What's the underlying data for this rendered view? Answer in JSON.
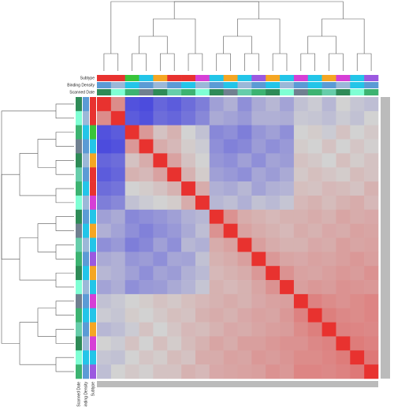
{
  "chart_data": {
    "type": "heatmap",
    "zlim": [
      0,
      1
    ],
    "colorscale": [
      "#2a2ae0",
      "#d2d2d2",
      "#e8322f"
    ],
    "matrix": [
      [
        1,
        0.72,
        0.12,
        0.1,
        0.18,
        0.15,
        0.2,
        0.25,
        0.35,
        0.4,
        0.3,
        0.38,
        0.42,
        0.36,
        0.45,
        0.48,
        0.42,
        0.5,
        0.46,
        0.44
      ],
      [
        0.72,
        1,
        0.15,
        0.12,
        0.2,
        0.18,
        0.22,
        0.28,
        0.38,
        0.36,
        0.33,
        0.4,
        0.4,
        0.39,
        0.47,
        0.46,
        0.44,
        0.48,
        0.45,
        0.5
      ],
      [
        0.12,
        0.15,
        1,
        0.68,
        0.55,
        0.6,
        0.5,
        0.45,
        0.28,
        0.3,
        0.25,
        0.32,
        0.35,
        0.3,
        0.5,
        0.52,
        0.48,
        0.55,
        0.5,
        0.53
      ],
      [
        0.1,
        0.12,
        0.68,
        1,
        0.62,
        0.58,
        0.52,
        0.48,
        0.3,
        0.26,
        0.28,
        0.34,
        0.3,
        0.33,
        0.52,
        0.5,
        0.55,
        0.5,
        0.54,
        0.51
      ],
      [
        0.18,
        0.2,
        0.55,
        0.62,
        1,
        0.65,
        0.55,
        0.5,
        0.32,
        0.3,
        0.35,
        0.3,
        0.36,
        0.34,
        0.55,
        0.53,
        0.5,
        0.56,
        0.52,
        0.55
      ],
      [
        0.15,
        0.18,
        0.6,
        0.58,
        0.65,
        1,
        0.6,
        0.52,
        0.35,
        0.33,
        0.3,
        0.37,
        0.34,
        0.38,
        0.53,
        0.56,
        0.54,
        0.52,
        0.57,
        0.55
      ],
      [
        0.2,
        0.22,
        0.5,
        0.52,
        0.55,
        0.6,
        1,
        0.62,
        0.4,
        0.38,
        0.42,
        0.36,
        0.4,
        0.41,
        0.56,
        0.55,
        0.58,
        0.57,
        0.55,
        0.6
      ],
      [
        0.25,
        0.28,
        0.45,
        0.48,
        0.5,
        0.52,
        0.62,
        1,
        0.42,
        0.44,
        0.4,
        0.45,
        0.43,
        0.46,
        0.58,
        0.6,
        0.57,
        0.6,
        0.62,
        0.58
      ],
      [
        0.35,
        0.38,
        0.28,
        0.3,
        0.32,
        0.35,
        0.4,
        0.42,
        1,
        0.7,
        0.62,
        0.6,
        0.58,
        0.6,
        0.6,
        0.62,
        0.6,
        0.64,
        0.62,
        0.63
      ],
      [
        0.4,
        0.36,
        0.3,
        0.26,
        0.3,
        0.33,
        0.38,
        0.44,
        0.7,
        1,
        0.65,
        0.62,
        0.6,
        0.58,
        0.62,
        0.6,
        0.63,
        0.62,
        0.65,
        0.64
      ],
      [
        0.3,
        0.33,
        0.25,
        0.28,
        0.35,
        0.3,
        0.42,
        0.4,
        0.62,
        0.65,
        1,
        0.66,
        0.62,
        0.6,
        0.6,
        0.63,
        0.62,
        0.66,
        0.64,
        0.65
      ],
      [
        0.38,
        0.4,
        0.32,
        0.34,
        0.3,
        0.37,
        0.36,
        0.45,
        0.6,
        0.62,
        0.66,
        1,
        0.68,
        0.64,
        0.63,
        0.65,
        0.64,
        0.66,
        0.68,
        0.66
      ],
      [
        0.42,
        0.4,
        0.35,
        0.3,
        0.36,
        0.34,
        0.4,
        0.43,
        0.58,
        0.6,
        0.62,
        0.68,
        1,
        0.7,
        0.65,
        0.64,
        0.66,
        0.68,
        0.67,
        0.7
      ],
      [
        0.36,
        0.39,
        0.3,
        0.33,
        0.34,
        0.38,
        0.41,
        0.46,
        0.6,
        0.58,
        0.6,
        0.64,
        0.7,
        1,
        0.66,
        0.68,
        0.67,
        0.7,
        0.69,
        0.68
      ],
      [
        0.45,
        0.47,
        0.5,
        0.52,
        0.55,
        0.53,
        0.56,
        0.58,
        0.6,
        0.62,
        0.6,
        0.63,
        0.65,
        0.66,
        1,
        0.75,
        0.72,
        0.7,
        0.72,
        0.74
      ],
      [
        0.48,
        0.46,
        0.52,
        0.5,
        0.53,
        0.56,
        0.55,
        0.6,
        0.62,
        0.6,
        0.63,
        0.65,
        0.64,
        0.68,
        0.75,
        1,
        0.76,
        0.73,
        0.72,
        0.74
      ],
      [
        0.42,
        0.44,
        0.48,
        0.55,
        0.5,
        0.54,
        0.58,
        0.57,
        0.6,
        0.63,
        0.62,
        0.64,
        0.66,
        0.67,
        0.72,
        0.76,
        1,
        0.75,
        0.74,
        0.73
      ],
      [
        0.5,
        0.48,
        0.55,
        0.5,
        0.56,
        0.52,
        0.57,
        0.6,
        0.64,
        0.62,
        0.66,
        0.66,
        0.68,
        0.7,
        0.7,
        0.73,
        0.75,
        1,
        0.77,
        0.75
      ],
      [
        0.46,
        0.45,
        0.5,
        0.54,
        0.52,
        0.57,
        0.55,
        0.62,
        0.62,
        0.65,
        0.64,
        0.68,
        0.67,
        0.69,
        0.72,
        0.72,
        0.74,
        0.77,
        1,
        0.78
      ],
      [
        0.44,
        0.5,
        0.53,
        0.51,
        0.55,
        0.55,
        0.6,
        0.58,
        0.63,
        0.64,
        0.65,
        0.66,
        0.7,
        0.68,
        0.74,
        0.74,
        0.73,
        0.75,
        0.78,
        1
      ]
    ],
    "annotations": [
      {
        "name": "Subtype",
        "colors": [
          "#e8322f",
          "#e8322f",
          "#39c43a",
          "#23c5e8",
          "#f5a623",
          "#e8322f",
          "#e8322f",
          "#d63fd6",
          "#23c5e8",
          "#f5a623",
          "#23c5e8",
          "#9b59e0",
          "#f5a623",
          "#23c5e8",
          "#d63fd6",
          "#23c5e8",
          "#f5a623",
          "#d63fd6",
          "#23c5e8",
          "#9b59e0"
        ]
      },
      {
        "name": "Binding Density",
        "colors": [
          "#5b9bd5",
          "#9bb8d8",
          "#23c5e8",
          "#5b9bd5",
          "#9bb8d8",
          "#5b9bd5",
          "#23c5e8",
          "#9bb8d8",
          "#5b9bd5",
          "#23c5e8",
          "#9bb8d8",
          "#5b9bd5",
          "#23c5e8",
          "#9bb8d8",
          "#5b9bd5",
          "#23c5e8",
          "#5b9bd5",
          "#9bb8d8",
          "#23c5e8",
          "#5b9bd5"
        ]
      },
      {
        "name": "Scanned Date",
        "colors": [
          "#2e8b57",
          "#7fffd4",
          "#3cb371",
          "#708090",
          "#2e8b57",
          "#66cdaa",
          "#3cb371",
          "#7fffd4",
          "#2e8b57",
          "#708090",
          "#66cdaa",
          "#3cb371",
          "#2e8b57",
          "#7fffd4",
          "#708090",
          "#3cb371",
          "#66cdaa",
          "#2e8b57",
          "#7fffd4",
          "#3cb371"
        ]
      }
    ]
  }
}
